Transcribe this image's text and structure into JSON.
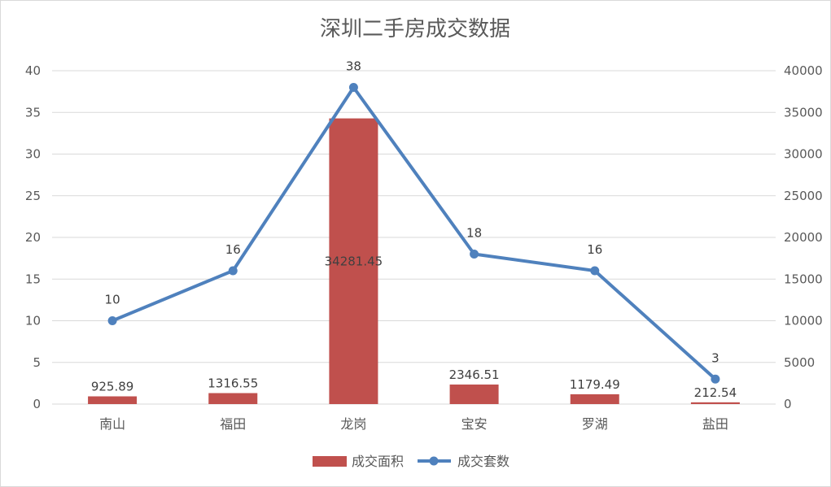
{
  "chart_data": {
    "type": "bar+line",
    "title": "深圳二手房成交数据",
    "categories": [
      "南山",
      "福田",
      "龙岗",
      "宝安",
      "罗湖",
      "盐田"
    ],
    "series": [
      {
        "name": "成交面积",
        "type": "bar",
        "axis": "right",
        "color": "#c0504d",
        "values": [
          925.89,
          1316.55,
          34281.45,
          2346.51,
          1179.49,
          212.54
        ],
        "labels": [
          "925.89",
          "1316.55",
          "34281.45",
          "2346.51",
          "1179.49",
          "212.54"
        ]
      },
      {
        "name": "成交套数",
        "type": "line",
        "axis": "left",
        "color": "#4f81bd",
        "values": [
          10,
          16,
          38,
          18,
          16,
          3
        ],
        "labels": [
          "10",
          "16",
          "38",
          "18",
          "16",
          "3"
        ]
      }
    ],
    "y_left": {
      "min": 0,
      "max": 40,
      "ticks": [
        "0",
        "5",
        "10",
        "15",
        "20",
        "25",
        "30",
        "35",
        "40"
      ]
    },
    "y_right": {
      "min": 0,
      "max": 40000,
      "ticks": [
        "0",
        "5000",
        "10000",
        "15000",
        "20000",
        "25000",
        "30000",
        "35000",
        "40000"
      ]
    },
    "grid": true,
    "legend_position": "bottom",
    "gridline_color": "#d9d9d9"
  }
}
